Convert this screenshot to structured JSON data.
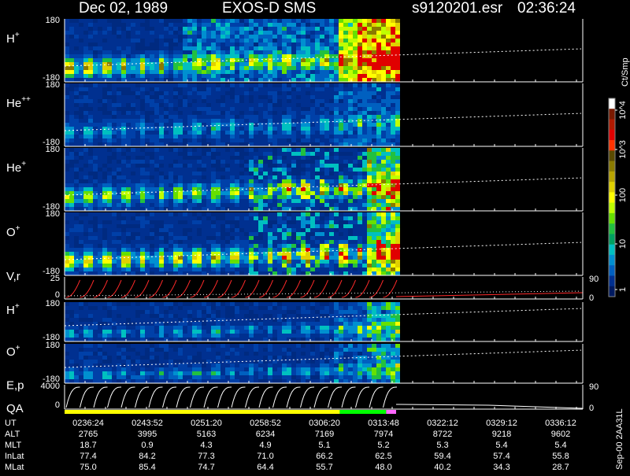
{
  "header": {
    "date": "Dec 02, 1989",
    "instrument": "EXOS-D SMS",
    "filename": "s9120201.esr",
    "time": "02:36:24"
  },
  "colorbar": {
    "unit": "Ct/Smp",
    "ticks": [
      "10^4",
      "10^3",
      "100",
      "10",
      "1"
    ],
    "colors": [
      "#ffffff",
      "#7a1a00",
      "#b01a00",
      "#e00000",
      "#ff3300",
      "#5a4a00",
      "#8a7a00",
      "#b8a300",
      "#e0d000",
      "#ffff00",
      "#bfff00",
      "#66e000",
      "#22c040",
      "#00a060",
      "#00c0c0",
      "#0090d0",
      "#0060c0",
      "#003090",
      "#001a60"
    ]
  },
  "chart_data": [
    {
      "type": "heatmap",
      "panel": "H+",
      "label_base": "H",
      "label_sup": "+",
      "yticks": [
        "180",
        "-180"
      ],
      "ylim": [
        -180,
        180
      ],
      "intensity_level": "high"
    },
    {
      "type": "heatmap",
      "panel": "He++",
      "label_base": "He",
      "label_sup": "++",
      "yticks": [
        "180",
        "-180"
      ],
      "ylim": [
        -180,
        180
      ],
      "intensity_level": "low"
    },
    {
      "type": "heatmap",
      "panel": "He+",
      "label_base": "He",
      "label_sup": "+",
      "yticks": [
        "180",
        "-180"
      ],
      "ylim": [
        -180,
        180
      ],
      "intensity_level": "medium"
    },
    {
      "type": "heatmap",
      "panel": "O+",
      "label_base": "O",
      "label_sup": "+",
      "yticks": [
        "180",
        "-180"
      ],
      "ylim": [
        -180,
        180
      ],
      "intensity_level": "medium-high"
    },
    {
      "type": "line",
      "panel": "V,r",
      "label_base": "V,r",
      "label_sup": "",
      "yticks": [
        "25",
        "0"
      ],
      "ylim": [
        0,
        25
      ],
      "right_ticks": [
        "90",
        "0"
      ]
    },
    {
      "type": "heatmap",
      "panel": "H+ (2)",
      "label_base": "H",
      "label_sup": "+",
      "yticks": [
        "180",
        "-180"
      ],
      "ylim": [
        -180,
        180
      ],
      "intensity_level": "low"
    },
    {
      "type": "heatmap",
      "panel": "O+ (2)",
      "label_base": "O",
      "label_sup": "+",
      "yticks": [
        "180",
        "-180"
      ],
      "ylim": [
        -180,
        180
      ],
      "intensity_level": "low"
    },
    {
      "type": "line",
      "panel": "E,p",
      "label_base": "E,p",
      "label_sup": "",
      "yticks": [
        "4000",
        "0"
      ],
      "ylim": [
        0,
        4000
      ],
      "right_ticks": [
        "90",
        "0"
      ]
    }
  ],
  "qa": {
    "label": "QA",
    "segments": [
      {
        "color": "#ffff00",
        "fraction": 0.83
      },
      {
        "color": "#00ff00",
        "fraction": 0.14
      },
      {
        "color": "#ff66ff",
        "fraction": 0.03
      }
    ]
  },
  "orbit": {
    "side_label": "Sep-00  2AA31L",
    "rows": [
      {
        "label": "UT",
        "values": [
          "0236:24",
          "0243:52",
          "0251:20",
          "0258:52",
          "0306:20",
          "0313:48",
          "0322:12",
          "0329:12",
          "0336:12"
        ]
      },
      {
        "label": "ALT",
        "values": [
          "2765",
          "3995",
          "5163",
          "6234",
          "7169",
          "7974",
          "8722",
          "9218",
          "9602"
        ]
      },
      {
        "label": "MLT",
        "values": [
          "18.7",
          "0.9",
          "4.3",
          "4.9",
          "5.1",
          "5.2",
          "5.3",
          "5.4",
          "5.4"
        ]
      },
      {
        "label": "InLat",
        "values": [
          "77.4",
          "84.2",
          "77.3",
          "71.0",
          "66.2",
          "62.5",
          "59.4",
          "57.4",
          "55.8"
        ]
      },
      {
        "label": "MLat",
        "values": [
          "75.0",
          "85.4",
          "74.7",
          "64.4",
          "55.7",
          "48.0",
          "40.2",
          "34.3",
          "28.7"
        ]
      }
    ]
  }
}
